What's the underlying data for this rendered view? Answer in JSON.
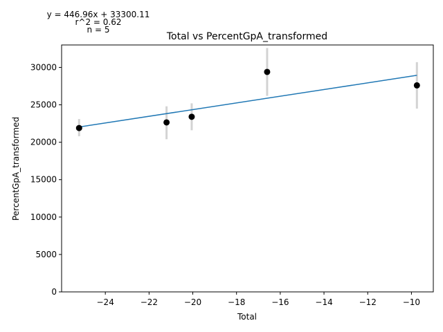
{
  "chart_data": {
    "type": "scatter",
    "title": "Total vs PercentGpA_transformed",
    "xlabel": "Total",
    "ylabel": "PercentGpA_transformed",
    "xlim": [
      -26.0,
      -9.0
    ],
    "ylim": [
      0,
      33000
    ],
    "xticks": [
      -24,
      -22,
      -20,
      -18,
      -16,
      -14,
      -12,
      -10
    ],
    "xtick_labels": [
      "−24",
      "−22",
      "−20",
      "−18",
      "−16",
      "−14",
      "−12",
      "−10"
    ],
    "yticks": [
      0,
      5000,
      10000,
      15000,
      20000,
      25000,
      30000
    ],
    "ytick_labels": [
      "0",
      "5000",
      "10000",
      "15000",
      "20000",
      "25000",
      "30000"
    ],
    "grid": false,
    "points": [
      {
        "x": -25.2,
        "y": 21900,
        "err_low": 20800,
        "err_high": 23100
      },
      {
        "x": -21.2,
        "y": 22650,
        "err_low": 20400,
        "err_high": 24800
      },
      {
        "x": -20.05,
        "y": 23400,
        "err_low": 21600,
        "err_high": 25200
      },
      {
        "x": -16.6,
        "y": 29400,
        "err_low": 26200,
        "err_high": 32600
      },
      {
        "x": -9.75,
        "y": 27600,
        "err_low": 24500,
        "err_high": 30700
      }
    ],
    "fit_line": {
      "slope": 446.96,
      "intercept": 33300.11,
      "x_range": [
        -25.2,
        -9.75
      ]
    },
    "annotations": [
      "y = 446.96x + 33300.11",
      "r^2 = 0.62",
      "n = 5"
    ],
    "colors": {
      "points": "#000000",
      "errorbars": "#d3d3d3",
      "fit": "#1f77b4",
      "axes": "#000000"
    }
  }
}
